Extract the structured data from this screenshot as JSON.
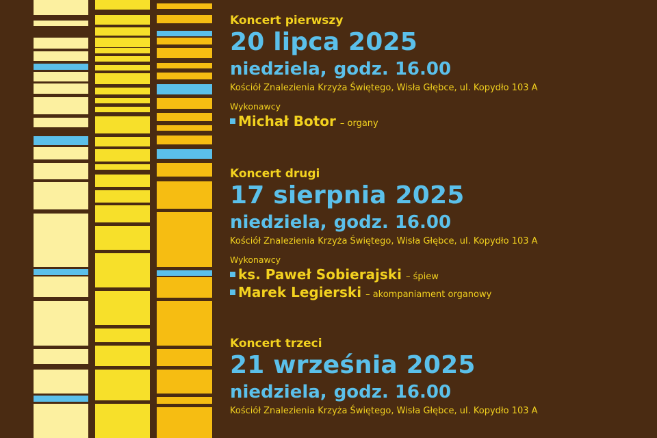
{
  "colors": {
    "background": "#4a2b12",
    "text_yellow": "#f3d21f",
    "text_blue": "#5bc0ea",
    "bar_pale": "#fcf0a0",
    "bar_yellow": "#f7e02a",
    "bar_gold": "#f6bd12",
    "bar_blue": "#5bc0ea"
  },
  "decor": {
    "icon": "bullet-square-icon"
  },
  "concerts": [
    {
      "heading": "Koncert pierwszy",
      "date": "20 lipca 2025",
      "day": "niedziela,",
      "time": "godz. 16.00",
      "place": "Kościół Znalezienia Krzyża Świętego, Wisła Głębce, ul. Kopydło 103 A",
      "performers_label": "Wykonawcy",
      "performers": [
        {
          "name": "Michał Botor",
          "role": "– organy"
        }
      ]
    },
    {
      "heading": "Koncert drugi",
      "date": "17 sierpnia 2025",
      "day": "niedziela,",
      "time": "godz. 16.00",
      "place": "Kościół Znalezienia Krzyża Świętego, Wisła Głębce, ul. Kopydło 103 A",
      "performers_label": "Wykonawcy",
      "performers": [
        {
          "name": "ks. Paweł Sobierajski",
          "role": "– śpiew"
        },
        {
          "name": "Marek Legierski",
          "role": "– akompaniament organowy"
        }
      ]
    },
    {
      "heading": "Koncert trzeci",
      "date": "21 września 2025",
      "day": "niedziela,",
      "time": "godz. 16.00",
      "place": "Kościół Znalezienia Krzyża Świętego, Wisła Głębce, ul. Kopydło 103 A"
    }
  ]
}
